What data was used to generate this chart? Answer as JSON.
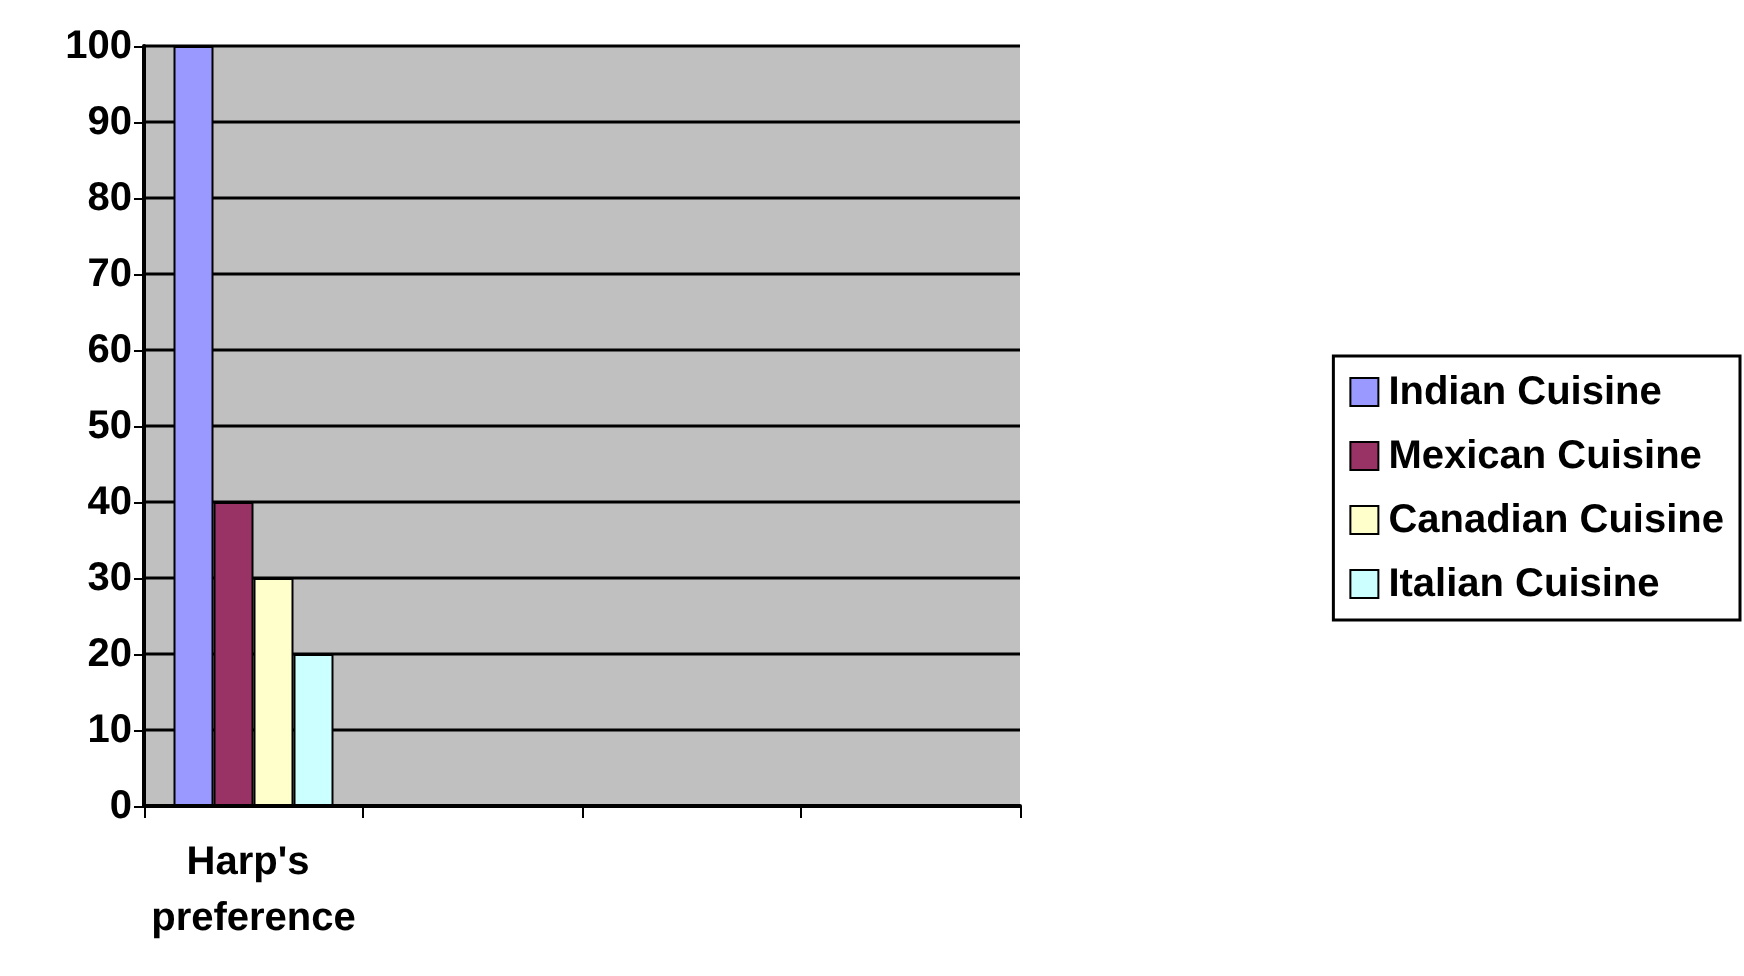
{
  "chart_data": {
    "type": "bar",
    "categories": [
      "Harp's preference",
      null,
      null,
      null
    ],
    "series": [
      {
        "name": "Indian Cuisine",
        "color": "#9999ff",
        "values": [
          100,
          null,
          null,
          null
        ]
      },
      {
        "name": "Mexican Cuisine",
        "color": "#993366",
        "values": [
          40,
          null,
          null,
          null
        ]
      },
      {
        "name": "Canadian Cuisine",
        "color": "#ffffcc",
        "values": [
          30,
          null,
          null,
          null
        ]
      },
      {
        "name": "Italian Cuisine",
        "color": "#ccffff",
        "values": [
          20,
          null,
          null,
          null
        ]
      }
    ],
    "ylim": [
      0,
      100
    ],
    "yticks": [
      0,
      10,
      20,
      30,
      40,
      50,
      60,
      70,
      80,
      90,
      100
    ],
    "grid": "y",
    "legend": "right"
  }
}
